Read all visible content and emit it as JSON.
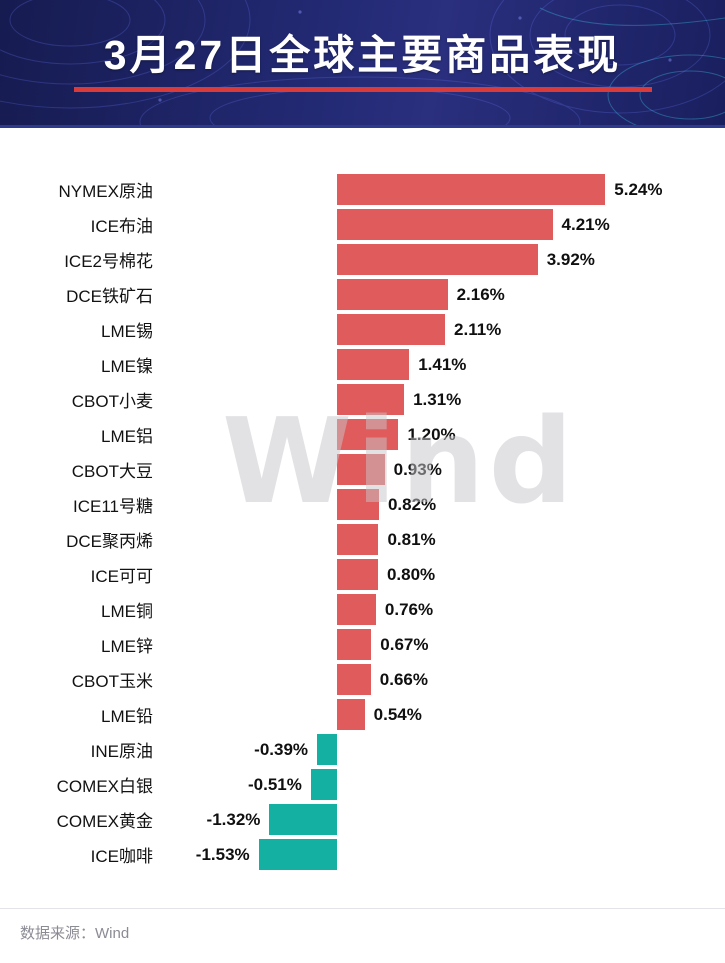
{
  "header": {
    "title": "3月27日全球主要商品表现"
  },
  "watermark": "Wind",
  "footer": {
    "source": "数据来源：Wind"
  },
  "colors": {
    "header_bg": "#1e2363",
    "title_text": "#ffffff",
    "title_underline": "#d93a3a",
    "positive_bar": "#e05c5c",
    "negative_bar": "#14b0a2",
    "label_text": "#121212",
    "footer_text": "#8b8b94"
  },
  "chart_data": {
    "type": "bar",
    "orientation": "horizontal",
    "title": "3月27日全球主要商品表现",
    "unit": "%",
    "grid": false,
    "legend": false,
    "xlim": [
      -2,
      6
    ],
    "categories": [
      "NYMEX原油",
      "ICE布油",
      "ICE2号棉花",
      "DCE铁矿石",
      "LME锡",
      "LME镍",
      "CBOT小麦",
      "LME铝",
      "CBOT大豆",
      "ICE11号糖",
      "DCE聚丙烯",
      "ICE可可",
      "LME铜",
      "LME锌",
      "CBOT玉米",
      "LME铅",
      "INE原油",
      "COMEX白银",
      "COMEX黄金",
      "ICE咖啡"
    ],
    "values": [
      5.24,
      4.21,
      3.92,
      2.16,
      2.11,
      1.41,
      1.31,
      1.2,
      0.93,
      0.82,
      0.81,
      0.8,
      0.76,
      0.67,
      0.66,
      0.54,
      -0.39,
      -0.51,
      -1.32,
      -1.53
    ],
    "value_labels": [
      "5.24%",
      "4.21%",
      "3.92%",
      "2.16%",
      "2.11%",
      "1.41%",
      "1.31%",
      "1.20%",
      "0.93%",
      "0.82%",
      "0.81%",
      "0.80%",
      "0.76%",
      "0.67%",
      "0.66%",
      "0.54%",
      "-0.39%",
      "-0.51%",
      "-1.32%",
      "-1.53%"
    ]
  }
}
